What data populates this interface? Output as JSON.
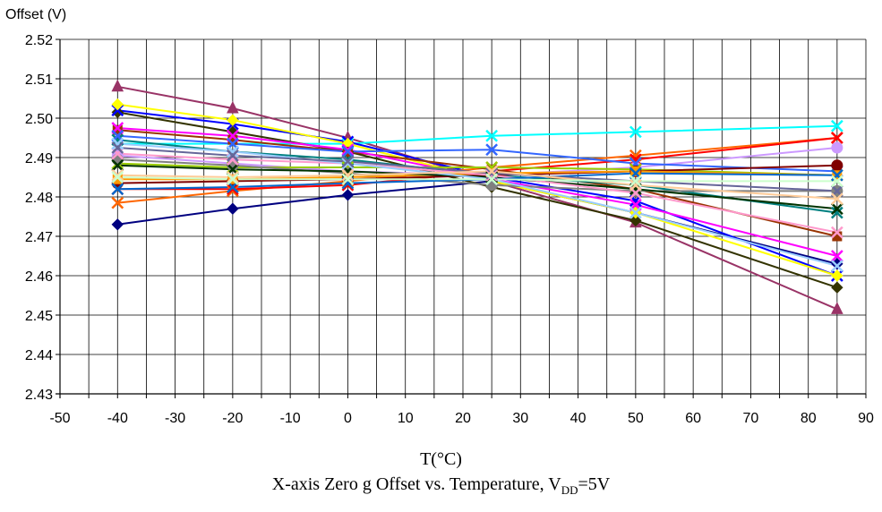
{
  "chart_data": {
    "type": "line",
    "ylabel": "Offset (V)",
    "xlabel": "T(°C)",
    "caption": {
      "prefix": "X-axis Zero g Offset vs. Temperature, V",
      "sub": "DD",
      "suffix": "=5V"
    },
    "x": [
      -40,
      -20,
      0,
      25,
      50,
      85
    ],
    "xlim": [
      -50,
      90
    ],
    "ylim": [
      2.43,
      2.52
    ],
    "xticks": [
      -50,
      -40,
      -30,
      -20,
      -10,
      0,
      10,
      20,
      30,
      40,
      50,
      60,
      70,
      80,
      90
    ],
    "xticklabels": [
      "-50",
      "-40",
      "-30",
      "-20",
      "-10",
      "0",
      "10",
      "20",
      "30",
      "40",
      "50",
      "60",
      "70",
      "80",
      "90"
    ],
    "yticks": [
      2.43,
      2.44,
      2.45,
      2.46,
      2.47,
      2.48,
      2.49,
      2.5,
      2.51,
      2.52
    ],
    "yticklabels": [
      "2.43",
      "2.44",
      "2.45",
      "2.46",
      "2.47",
      "2.48",
      "2.49",
      "2.50",
      "2.51",
      "2.52"
    ],
    "grid": true,
    "legend": "none",
    "series": [
      {
        "color": "#000080",
        "marker": "diamond",
        "values": [
          2.473,
          2.477,
          2.4805,
          2.484,
          2.476,
          2.463
        ]
      },
      {
        "color": "#993366",
        "marker": "triangle",
        "values": [
          2.508,
          2.5025,
          2.495,
          2.484,
          2.4735,
          2.4515
        ]
      },
      {
        "color": "#00FFFF",
        "marker": "x",
        "values": [
          2.4935,
          2.4935,
          2.4935,
          2.4955,
          2.4965,
          2.498
        ]
      },
      {
        "color": "#333300",
        "marker": "diamond",
        "values": [
          2.5015,
          2.4965,
          2.4915,
          2.4825,
          2.474,
          2.457
        ]
      },
      {
        "color": "#0000FF",
        "marker": "x",
        "values": [
          2.502,
          2.4985,
          2.494,
          2.485,
          2.479,
          2.46
        ]
      },
      {
        "color": "#FFFF00",
        "marker": "diamond",
        "values": [
          2.5035,
          2.4995,
          2.4935,
          2.484,
          2.476,
          2.46
        ]
      },
      {
        "color": "#FF6600",
        "marker": "x",
        "values": [
          2.4785,
          2.4815,
          2.484,
          2.4875,
          2.4905,
          2.495
        ]
      },
      {
        "color": "#FF0000",
        "marker": "x",
        "values": [
          2.482,
          2.482,
          2.483,
          2.4865,
          2.4895,
          2.495
        ]
      },
      {
        "color": "#993300",
        "marker": "square",
        "values": [
          2.497,
          2.4945,
          2.4915,
          2.487,
          2.482,
          2.47
        ]
      },
      {
        "color": "#008080",
        "marker": "x",
        "values": [
          2.4945,
          2.4915,
          2.4895,
          2.4855,
          2.483,
          2.476
        ]
      },
      {
        "color": "#CC99FF",
        "marker": "circle",
        "values": [
          2.4905,
          2.4885,
          2.4865,
          2.4855,
          2.4875,
          2.4925
        ]
      },
      {
        "color": "#FF00FF",
        "marker": "x",
        "values": [
          2.4975,
          2.4955,
          2.492,
          2.4845,
          2.478,
          2.465
        ]
      },
      {
        "color": "#3366FF",
        "marker": "x",
        "values": [
          2.4955,
          2.4935,
          2.4915,
          2.492,
          2.4885,
          2.4865
        ]
      },
      {
        "color": "#99CC00",
        "marker": "x",
        "values": [
          2.4885,
          2.4875,
          2.4875,
          2.4875,
          2.487,
          2.4855
        ]
      },
      {
        "color": "#808080",
        "marker": "circle",
        "values": [
          2.4895,
          2.488,
          2.486,
          2.483,
          2.4815,
          2.4815
        ]
      },
      {
        "color": "#800000",
        "marker": "circle",
        "values": [
          2.4835,
          2.484,
          2.4845,
          2.4855,
          2.4865,
          2.488
        ]
      },
      {
        "color": "#FF9900",
        "marker": "square",
        "values": [
          2.4845,
          2.4845,
          2.485,
          2.486,
          2.4865,
          2.4855
        ]
      },
      {
        "color": "#003300",
        "marker": "x",
        "values": [
          2.488,
          2.487,
          2.4865,
          2.485,
          2.482,
          2.477
        ]
      },
      {
        "color": "#FF99CC",
        "marker": "x",
        "values": [
          2.491,
          2.4895,
          2.4885,
          2.4855,
          2.481,
          2.471
        ]
      },
      {
        "color": "#99CCFF",
        "marker": "x",
        "values": [
          2.4935,
          2.4915,
          2.4885,
          2.4845,
          2.476,
          2.4625
        ]
      },
      {
        "color": "#0066CC",
        "marker": "x",
        "values": [
          2.482,
          2.4825,
          2.4835,
          2.4845,
          2.486,
          2.4855
        ]
      },
      {
        "color": "#666699",
        "marker": "x",
        "values": [
          2.4925,
          2.4905,
          2.489,
          2.486,
          2.484,
          2.4815
        ]
      },
      {
        "color": "#FFCC99",
        "marker": "x",
        "values": [
          2.4855,
          2.485,
          2.4855,
          2.4865,
          2.483,
          2.4795
        ]
      },
      {
        "color": "#CCFFCC",
        "marker": "x",
        "values": [
          2.485,
          2.4845,
          2.4845,
          2.4845,
          2.484,
          2.484
        ]
      }
    ]
  }
}
